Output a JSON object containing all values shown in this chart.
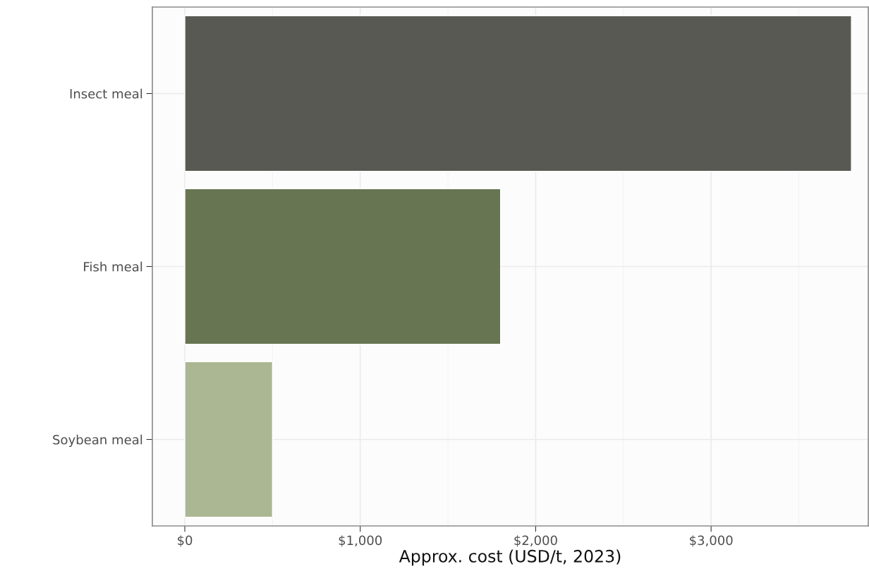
{
  "chart_data": {
    "type": "bar",
    "orientation": "horizontal",
    "categories": [
      "Insect meal",
      "Fish meal",
      "Soybean meal"
    ],
    "values": [
      3800,
      1800,
      500
    ],
    "colors": [
      "#585953",
      "#687552",
      "#abb793"
    ],
    "xlabel": "Approx. cost (USD/t, 2023)",
    "xlim": [
      -185,
      3896
    ],
    "xticks": [
      {
        "value": 0,
        "label": "$0"
      },
      {
        "value": 1000,
        "label": "$1,000"
      },
      {
        "value": 2000,
        "label": "$2,000"
      },
      {
        "value": 3000,
        "label": "$3,000"
      }
    ],
    "grid": true
  }
}
